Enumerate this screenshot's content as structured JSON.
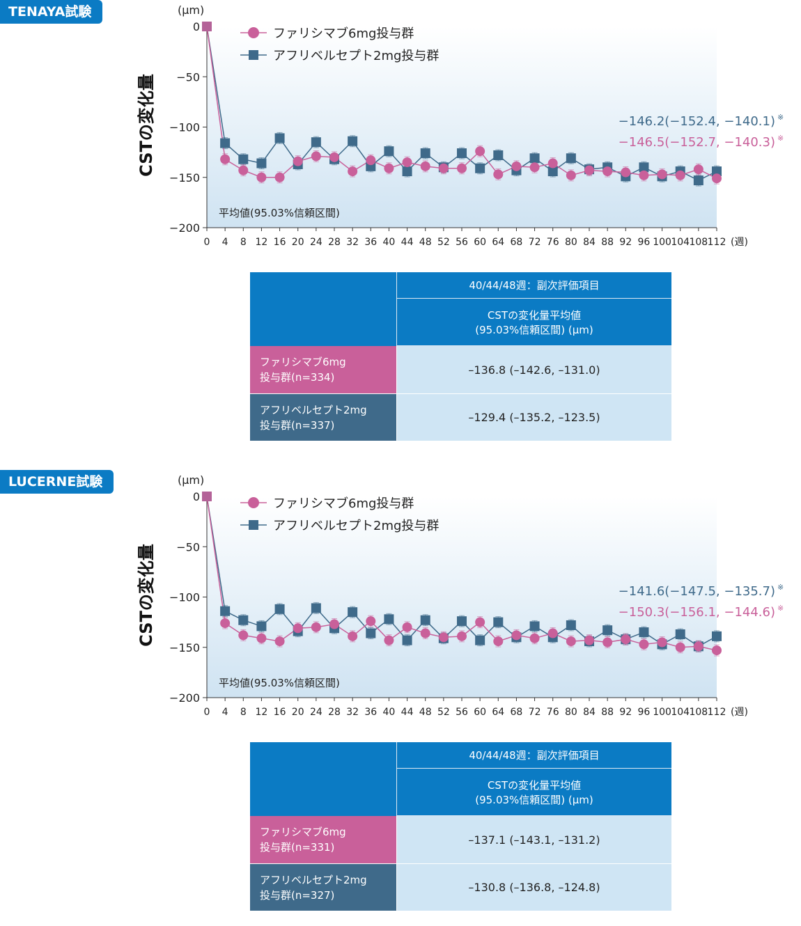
{
  "legend": {
    "faricimab": "ファリシマブ6mg投与群",
    "aflibercept": "アフリベルセプト2mg投与群"
  },
  "y_title": "CSTの変化量",
  "y_unit": "(μm)",
  "x_unit": "(週)",
  "note": "平均値(95.03%信頼区間)",
  "colors": {
    "faricimab": "#c9609a",
    "aflibercept": "#3f6a8a",
    "header": "#0b7bc4",
    "cell": "#cfe5f4"
  },
  "table_header": {
    "top": "40/44/48週：副次評価項目",
    "sub_line1": "CSTの変化量平均値",
    "sub_line2": "(95.03%信頼区間) (μm)"
  },
  "panels": [
    {
      "tag": "TENAYA試験",
      "annotation_aflibercept": "−146.2(−152.4, −140.1)",
      "annotation_faricimab": "−146.5(−152.7, −140.3)",
      "annotation_mark": "※",
      "table": {
        "row1_label_line1": "ファリシマブ6mg",
        "row1_label_line2": "投与群(n=334)",
        "row1_value": "–136.8 (–142.6, –131.0)",
        "row2_label_line1": "アフリベルセプト2mg",
        "row2_label_line2": "投与群(n=337)",
        "row2_value": "–129.4 (–135.2, –123.5)"
      }
    },
    {
      "tag": "LUCERNE試験",
      "annotation_aflibercept": "−141.6(−147.5, −135.7)",
      "annotation_faricimab": "−150.3(−156.1, −144.6)",
      "annotation_mark": "※",
      "table": {
        "row1_label_line1": "ファリシマブ6mg",
        "row1_label_line2": "投与群(n=331)",
        "row1_value": "–137.1 (–143.1, –131.2)",
        "row2_label_line1": "アフリベルセプト2mg",
        "row2_label_line2": "投与群(n=327)",
        "row2_value": "–130.8 (–136.8, –124.8)"
      }
    }
  ],
  "chart_data": [
    {
      "type": "line",
      "x": [
        0,
        4,
        8,
        12,
        16,
        20,
        24,
        28,
        32,
        36,
        40,
        44,
        48,
        52,
        56,
        60,
        64,
        68,
        72,
        76,
        80,
        84,
        88,
        92,
        96,
        100,
        104,
        108,
        112
      ],
      "x_tick_labels": [
        "0",
        "4",
        "8",
        "12",
        "16",
        "20",
        "24",
        "28",
        "32",
        "36",
        "40",
        "44",
        "48",
        "52",
        "56",
        "60",
        "64",
        "68",
        "72",
        "76",
        "80",
        "84",
        "88",
        "92",
        "96",
        "100",
        "104",
        "108",
        "112"
      ],
      "y_ticks": [
        0,
        -50,
        -100,
        -150,
        -200
      ],
      "y_tick_labels": [
        "0",
        "−50",
        "−100",
        "−150",
        "−200"
      ],
      "ylim": [
        -200,
        0
      ],
      "series": [
        {
          "name": "ファリシマブ6mg投与群",
          "values": [
            0,
            -132,
            -143,
            -150,
            -150,
            -134,
            -129,
            -130,
            -144,
            -133,
            -141,
            -135,
            -139,
            -141,
            -141,
            -124,
            -147,
            -139,
            -140,
            -136,
            -148,
            -143,
            -144,
            -145,
            -148,
            -147,
            -148,
            -142,
            -151
          ]
        },
        {
          "name": "アフリベルセプト2mg投与群",
          "values": [
            0,
            -116,
            -132,
            -136,
            -111,
            -137,
            -115,
            -132,
            -114,
            -139,
            -124,
            -144,
            -126,
            -140,
            -126,
            -141,
            -128,
            -143,
            -131,
            -144,
            -131,
            -142,
            -140,
            -149,
            -140,
            -149,
            -144,
            -153,
            -144
          ]
        }
      ]
    },
    {
      "type": "line",
      "x": [
        0,
        4,
        8,
        12,
        16,
        20,
        24,
        28,
        32,
        36,
        40,
        44,
        48,
        52,
        56,
        60,
        64,
        68,
        72,
        76,
        80,
        84,
        88,
        92,
        96,
        100,
        104,
        108,
        112
      ],
      "x_tick_labels": [
        "0",
        "4",
        "8",
        "12",
        "16",
        "20",
        "24",
        "28",
        "32",
        "36",
        "40",
        "44",
        "48",
        "52",
        "56",
        "60",
        "64",
        "68",
        "72",
        "76",
        "80",
        "84",
        "88",
        "92",
        "96",
        "100",
        "104",
        "108",
        "112"
      ],
      "y_ticks": [
        0,
        -50,
        -100,
        -150,
        -200
      ],
      "y_tick_labels": [
        "0",
        "−50",
        "−100",
        "−150",
        "−200"
      ],
      "ylim": [
        -200,
        0
      ],
      "series": [
        {
          "name": "ファリシマブ6mg投与群",
          "values": [
            0,
            -126,
            -138,
            -141,
            -144,
            -131,
            -130,
            -127,
            -139,
            -124,
            -143,
            -130,
            -136,
            -140,
            -139,
            -125,
            -144,
            -138,
            -141,
            -136,
            -144,
            -143,
            -145,
            -142,
            -147,
            -145,
            -150,
            -149,
            -153
          ]
        },
        {
          "name": "アフリベルセプト2mg投与群",
          "values": [
            0,
            -114,
            -123,
            -129,
            -112,
            -134,
            -111,
            -131,
            -115,
            -136,
            -122,
            -143,
            -123,
            -141,
            -124,
            -143,
            -125,
            -140,
            -129,
            -140,
            -128,
            -144,
            -133,
            -142,
            -135,
            -147,
            -137,
            -149,
            -139
          ]
        }
      ]
    }
  ]
}
